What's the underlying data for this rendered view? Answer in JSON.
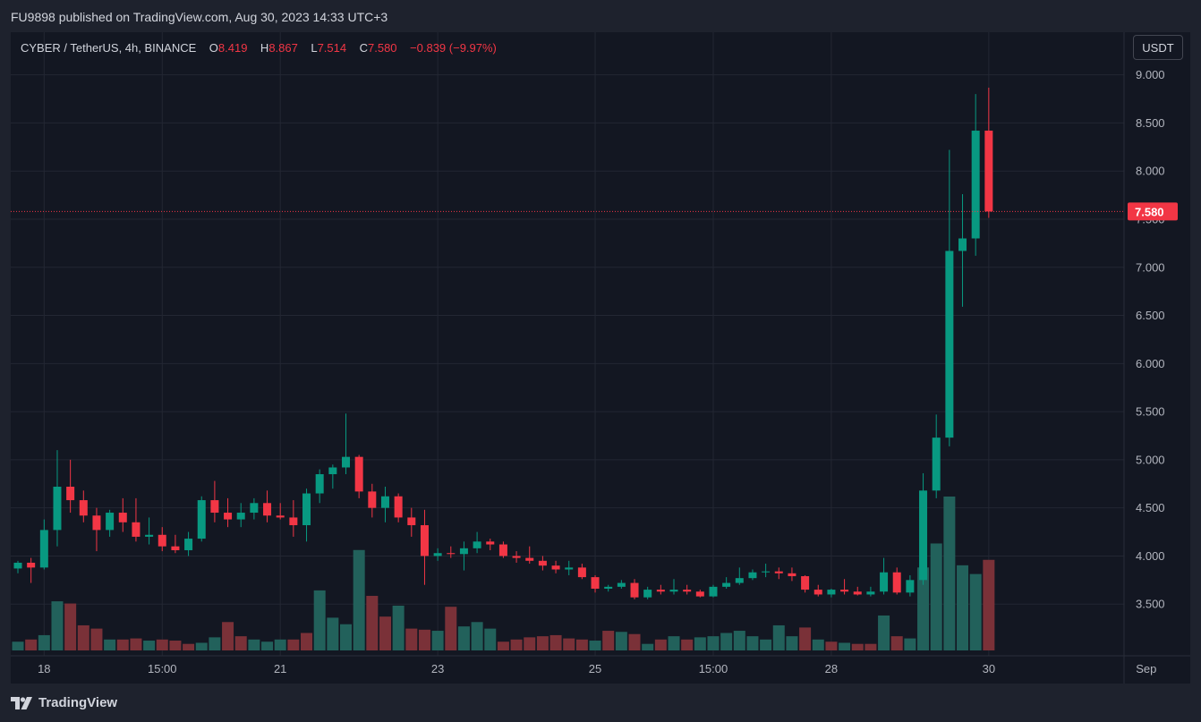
{
  "header": {
    "publish_note": "FU9898 published on TradingView.com, Aug 30, 2023 14:33 UTC+3"
  },
  "legend": {
    "symbol": "CYBER / TetherUS, 4h, BINANCE",
    "open_label": "O",
    "open": "8.419",
    "high_label": "H",
    "high": "8.867",
    "low_label": "L",
    "low": "7.514",
    "close_label": "C",
    "close": "7.580",
    "change": "−0.839 (−9.97%)"
  },
  "currency_button": "USDT",
  "footer": {
    "brand": "TradingView"
  },
  "colors": {
    "up": "#089981",
    "down": "#f23645",
    "up_volume": "#22615b",
    "down_volume": "#7a3138",
    "grid": "#232733",
    "axis_text": "#b2b5be",
    "background": "#131722"
  },
  "chart_data": {
    "type": "candlestick",
    "interval": "4h",
    "ylim": [
      3.0,
      9.35
    ],
    "y_ticks": [
      3.5,
      4.0,
      4.5,
      5.0,
      5.5,
      6.0,
      6.5,
      7.0,
      7.5,
      8.0,
      8.5,
      9.0
    ],
    "y_tick_labels": [
      "3.500",
      "4.000",
      "4.500",
      "5.000",
      "5.500",
      "6.000",
      "6.500",
      "7.000",
      "7.500",
      "8.000",
      "8.500",
      "9.000"
    ],
    "x_ticks": [
      {
        "label": "18",
        "bar": 2
      },
      {
        "label": "15:00",
        "bar": 11
      },
      {
        "label": "21",
        "bar": 20
      },
      {
        "label": "23",
        "bar": 32
      },
      {
        "label": "25",
        "bar": 44
      },
      {
        "label": "15:00",
        "bar": 53
      },
      {
        "label": "28",
        "bar": 62
      },
      {
        "label": "30",
        "bar": 74
      },
      {
        "label": "Sep",
        "bar": 86
      }
    ],
    "last_price": 7.58,
    "last_price_label": "7.580",
    "candles": [
      [
        3.87,
        3.95,
        3.82,
        3.93
      ],
      [
        3.93,
        3.98,
        3.72,
        3.88
      ],
      [
        3.88,
        4.38,
        3.86,
        4.27
      ],
      [
        4.27,
        5.1,
        4.1,
        4.72
      ],
      [
        4.72,
        5.0,
        4.45,
        4.58
      ],
      [
        4.58,
        4.68,
        4.35,
        4.42
      ],
      [
        4.42,
        4.5,
        4.05,
        4.27
      ],
      [
        4.27,
        4.48,
        4.2,
        4.45
      ],
      [
        4.45,
        4.6,
        4.25,
        4.35
      ],
      [
        4.35,
        4.6,
        4.15,
        4.2
      ],
      [
        4.2,
        4.4,
        4.12,
        4.22
      ],
      [
        4.22,
        4.3,
        4.05,
        4.1
      ],
      [
        4.1,
        4.22,
        4.03,
        4.06
      ],
      [
        4.06,
        4.25,
        4.0,
        4.18
      ],
      [
        4.18,
        4.62,
        4.15,
        4.58
      ],
      [
        4.58,
        4.78,
        4.35,
        4.45
      ],
      [
        4.45,
        4.6,
        4.3,
        4.38
      ],
      [
        4.38,
        4.55,
        4.3,
        4.45
      ],
      [
        4.45,
        4.6,
        4.38,
        4.55
      ],
      [
        4.55,
        4.68,
        4.35,
        4.42
      ],
      [
        4.42,
        4.55,
        4.38,
        4.4
      ],
      [
        4.4,
        4.58,
        4.2,
        4.32
      ],
      [
        4.32,
        4.7,
        4.15,
        4.65
      ],
      [
        4.65,
        4.9,
        4.55,
        4.85
      ],
      [
        4.85,
        4.95,
        4.7,
        4.92
      ],
      [
        4.92,
        5.48,
        4.85,
        5.03
      ],
      [
        5.03,
        5.05,
        4.6,
        4.67
      ],
      [
        4.67,
        4.75,
        4.4,
        4.5
      ],
      [
        4.5,
        4.72,
        4.35,
        4.62
      ],
      [
        4.62,
        4.65,
        4.35,
        4.4
      ],
      [
        4.4,
        4.5,
        4.2,
        4.32
      ],
      [
        4.32,
        4.48,
        3.7,
        4.0
      ],
      [
        4.0,
        4.08,
        3.95,
        4.03
      ],
      [
        4.03,
        4.1,
        3.98,
        4.02
      ],
      [
        4.02,
        4.15,
        3.85,
        4.08
      ],
      [
        4.08,
        4.25,
        4.03,
        4.15
      ],
      [
        4.15,
        4.18,
        4.06,
        4.12
      ],
      [
        4.12,
        4.15,
        3.98,
        4.0
      ],
      [
        4.0,
        4.05,
        3.93,
        3.98
      ],
      [
        3.98,
        4.1,
        3.92,
        3.95
      ],
      [
        3.95,
        4.0,
        3.85,
        3.9
      ],
      [
        3.9,
        3.95,
        3.82,
        3.86
      ],
      [
        3.86,
        3.95,
        3.8,
        3.88
      ],
      [
        3.88,
        3.92,
        3.76,
        3.78
      ],
      [
        3.78,
        3.8,
        3.62,
        3.66
      ],
      [
        3.66,
        3.7,
        3.63,
        3.68
      ],
      [
        3.68,
        3.75,
        3.66,
        3.72
      ],
      [
        3.72,
        3.76,
        3.55,
        3.57
      ],
      [
        3.57,
        3.68,
        3.55,
        3.65
      ],
      [
        3.65,
        3.7,
        3.6,
        3.63
      ],
      [
        3.63,
        3.76,
        3.6,
        3.65
      ],
      [
        3.65,
        3.7,
        3.6,
        3.63
      ],
      [
        3.63,
        3.65,
        3.57,
        3.58
      ],
      [
        3.58,
        3.7,
        3.57,
        3.68
      ],
      [
        3.68,
        3.78,
        3.66,
        3.72
      ],
      [
        3.72,
        3.88,
        3.7,
        3.77
      ],
      [
        3.77,
        3.86,
        3.75,
        3.83
      ],
      [
        3.83,
        3.92,
        3.78,
        3.84
      ],
      [
        3.84,
        3.88,
        3.76,
        3.82
      ],
      [
        3.82,
        3.88,
        3.74,
        3.79
      ],
      [
        3.79,
        3.8,
        3.62,
        3.65
      ],
      [
        3.65,
        3.7,
        3.58,
        3.6
      ],
      [
        3.6,
        3.66,
        3.57,
        3.65
      ],
      [
        3.65,
        3.76,
        3.6,
        3.63
      ],
      [
        3.63,
        3.68,
        3.59,
        3.6
      ],
      [
        3.6,
        3.68,
        3.58,
        3.63
      ],
      [
        3.63,
        3.98,
        3.6,
        3.83
      ],
      [
        3.83,
        3.88,
        3.6,
        3.62
      ],
      [
        3.62,
        3.8,
        3.58,
        3.75
      ],
      [
        3.75,
        4.86,
        3.7,
        4.68
      ],
      [
        4.68,
        5.47,
        4.6,
        5.23
      ],
      [
        5.23,
        8.22,
        5.14,
        7.17
      ],
      [
        7.17,
        7.76,
        6.59,
        7.3
      ],
      [
        7.3,
        8.8,
        7.12,
        8.42
      ],
      [
        8.42,
        8.867,
        7.514,
        7.58
      ]
    ],
    "volumes": [
      [
        0.8,
        "up"
      ],
      [
        1.0,
        "down"
      ],
      [
        1.4,
        "up"
      ],
      [
        4.5,
        "up"
      ],
      [
        4.3,
        "down"
      ],
      [
        2.3,
        "down"
      ],
      [
        2.0,
        "down"
      ],
      [
        1.0,
        "up"
      ],
      [
        1.0,
        "down"
      ],
      [
        1.1,
        "down"
      ],
      [
        0.9,
        "up"
      ],
      [
        1.0,
        "down"
      ],
      [
        0.9,
        "down"
      ],
      [
        0.6,
        "down"
      ],
      [
        0.7,
        "up"
      ],
      [
        1.2,
        "up"
      ],
      [
        2.6,
        "down"
      ],
      [
        1.3,
        "down"
      ],
      [
        1.0,
        "up"
      ],
      [
        0.8,
        "up"
      ],
      [
        1.0,
        "up"
      ],
      [
        1.0,
        "down"
      ],
      [
        1.6,
        "down"
      ],
      [
        5.5,
        "up"
      ],
      [
        3.0,
        "up"
      ],
      [
        2.4,
        "up"
      ],
      [
        9.2,
        "up"
      ],
      [
        5.0,
        "down"
      ],
      [
        3.1,
        "down"
      ],
      [
        4.1,
        "up"
      ],
      [
        2.0,
        "down"
      ],
      [
        1.9,
        "down"
      ],
      [
        1.8,
        "up"
      ],
      [
        4.0,
        "down"
      ],
      [
        2.2,
        "up"
      ],
      [
        2.6,
        "up"
      ],
      [
        2.0,
        "up"
      ],
      [
        0.8,
        "down"
      ],
      [
        1.0,
        "down"
      ],
      [
        1.2,
        "down"
      ],
      [
        1.3,
        "down"
      ],
      [
        1.4,
        "down"
      ],
      [
        1.1,
        "down"
      ],
      [
        1.0,
        "down"
      ],
      [
        0.9,
        "up"
      ],
      [
        1.8,
        "down"
      ],
      [
        1.7,
        "up"
      ],
      [
        1.5,
        "down"
      ],
      [
        0.6,
        "up"
      ],
      [
        1.0,
        "down"
      ],
      [
        1.3,
        "up"
      ],
      [
        1.0,
        "down"
      ],
      [
        1.2,
        "up"
      ],
      [
        1.3,
        "up"
      ],
      [
        1.6,
        "up"
      ],
      [
        1.8,
        "up"
      ],
      [
        1.3,
        "up"
      ],
      [
        1.0,
        "up"
      ],
      [
        2.3,
        "up"
      ],
      [
        1.3,
        "up"
      ],
      [
        2.1,
        "down"
      ],
      [
        1.0,
        "up"
      ],
      [
        0.8,
        "down"
      ],
      [
        0.7,
        "up"
      ],
      [
        0.6,
        "down"
      ],
      [
        0.6,
        "down"
      ],
      [
        3.2,
        "up"
      ],
      [
        1.3,
        "down"
      ],
      [
        1.1,
        "up"
      ],
      [
        7.6,
        "up"
      ],
      [
        9.8,
        "up"
      ],
      [
        14.1,
        "up"
      ],
      [
        7.8,
        "up"
      ],
      [
        7.0,
        "up"
      ],
      [
        8.3,
        "down"
      ]
    ]
  }
}
